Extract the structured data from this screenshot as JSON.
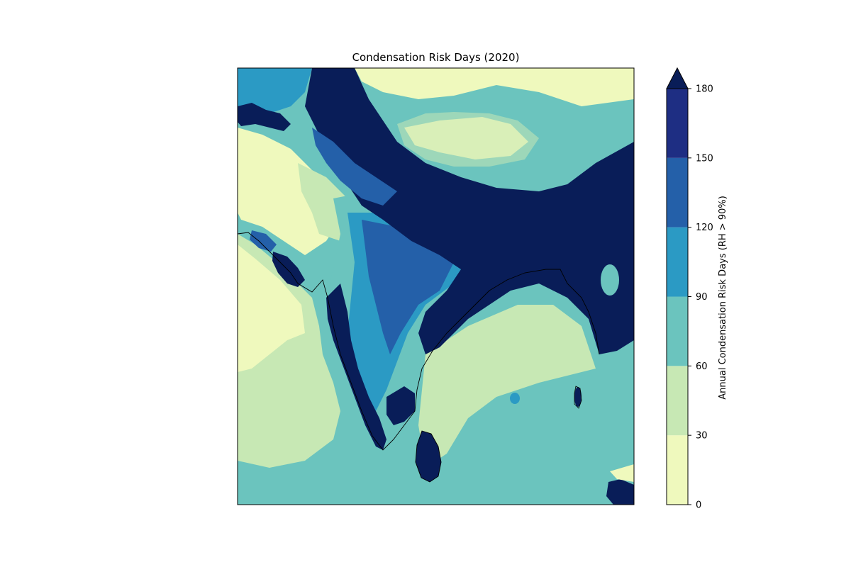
{
  "title": "Condensation Risk Days (2020)",
  "colorbar": {
    "label": "Annual Condensation Risk Days (RH > 90%)",
    "extend": "max",
    "ticks": [
      "0",
      "30",
      "60",
      "90",
      "120",
      "150",
      "180"
    ],
    "levels": [
      0,
      30,
      60,
      90,
      120,
      150,
      180
    ],
    "colors": [
      "#eff9bd",
      "#c7e8b4",
      "#6bc4be",
      "#2b9ac4",
      "#2460a9",
      "#1e2e83",
      "#091d58"
    ]
  }
}
